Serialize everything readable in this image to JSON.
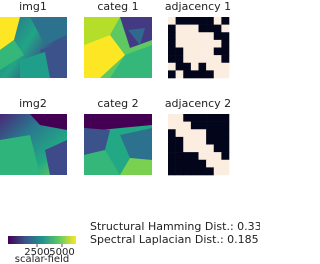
{
  "panels": [
    {
      "title": "img1"
    },
    {
      "title": "categ 1"
    },
    {
      "title": "adjacency 1"
    },
    {
      "title": "img2"
    },
    {
      "title": "categ 2"
    },
    {
      "title": "adjacency 2"
    }
  ],
  "adjacency": [
    [
      [
        1,
        0,
        0,
        0,
        0,
        0,
        1,
        0
      ],
      [
        0,
        1,
        1,
        1,
        0,
        0,
        0,
        1
      ],
      [
        0,
        1,
        1,
        1,
        1,
        1,
        0,
        0
      ],
      [
        0,
        1,
        1,
        1,
        1,
        1,
        1,
        0
      ],
      [
        0,
        0,
        1,
        1,
        1,
        1,
        0,
        0
      ],
      [
        0,
        0,
        1,
        1,
        1,
        1,
        1,
        0
      ],
      [
        1,
        0,
        0,
        1,
        0,
        1,
        1,
        1
      ],
      [
        0,
        1,
        0,
        0,
        0,
        0,
        1,
        1
      ]
    ],
    [
      [
        1,
        1,
        0,
        0,
        0,
        0,
        0,
        0
      ],
      [
        1,
        1,
        1,
        0,
        0,
        0,
        0,
        0
      ],
      [
        0,
        1,
        1,
        1,
        1,
        0,
        0,
        0
      ],
      [
        0,
        0,
        1,
        1,
        1,
        0,
        0,
        0
      ],
      [
        0,
        0,
        1,
        1,
        1,
        1,
        0,
        0
      ],
      [
        0,
        0,
        0,
        0,
        1,
        1,
        1,
        0
      ],
      [
        0,
        0,
        0,
        0,
        0,
        1,
        1,
        1
      ],
      [
        0,
        0,
        0,
        0,
        0,
        0,
        1,
        1
      ]
    ]
  ],
  "colorbar": {
    "label": "scalar-field",
    "lim": [
      -400,
      6400
    ],
    "ticks": [
      2500,
      5000
    ]
  },
  "metrics": [
    "Structural Hamming Dist.: 0.333",
    "Spectral Laplacian Dist.: 0.185"
  ]
}
